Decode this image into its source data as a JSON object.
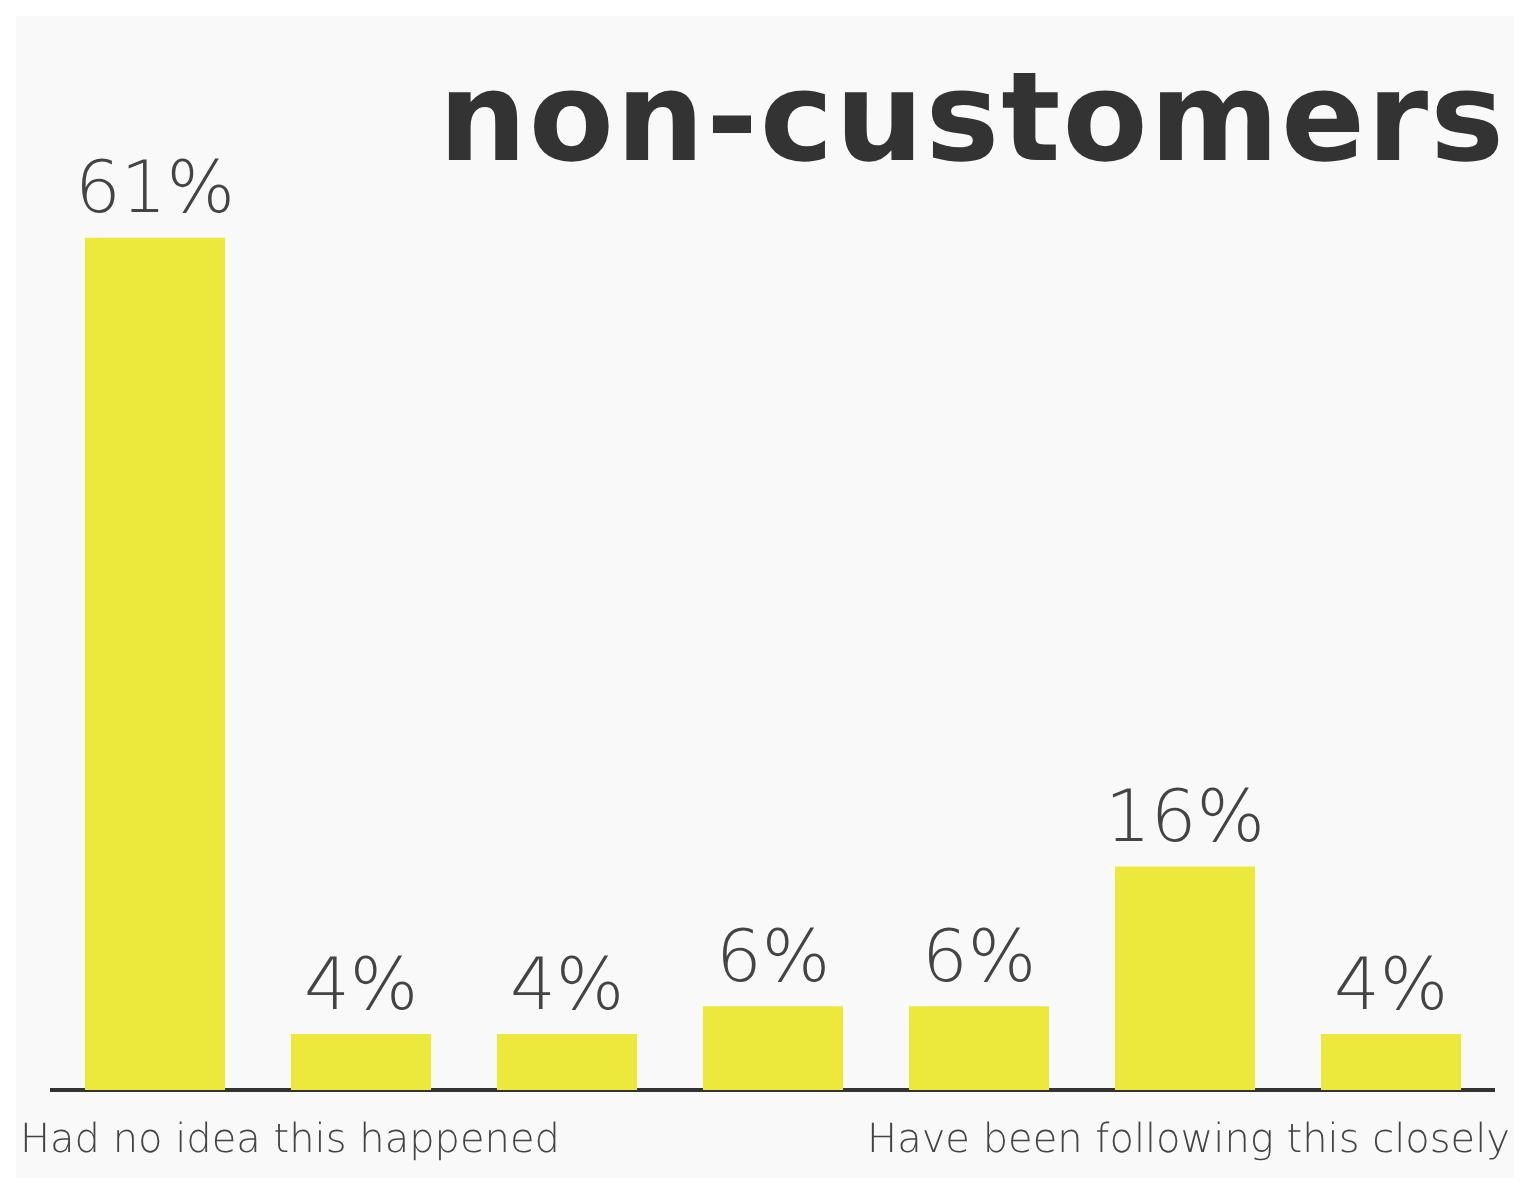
{
  "chart_data": {
    "type": "bar",
    "title": "non-customers",
    "categories": [
      null,
      null,
      null,
      null,
      null,
      null,
      null
    ],
    "values": [
      61,
      4,
      4,
      6,
      6,
      16,
      4
    ],
    "value_labels": [
      "61%",
      "4%",
      "4%",
      "6%",
      "6%",
      "16%",
      "4%"
    ],
    "color": "#ede83c",
    "annotations": [
      "Had no idea this happened",
      "Have been following this closely"
    ]
  }
}
